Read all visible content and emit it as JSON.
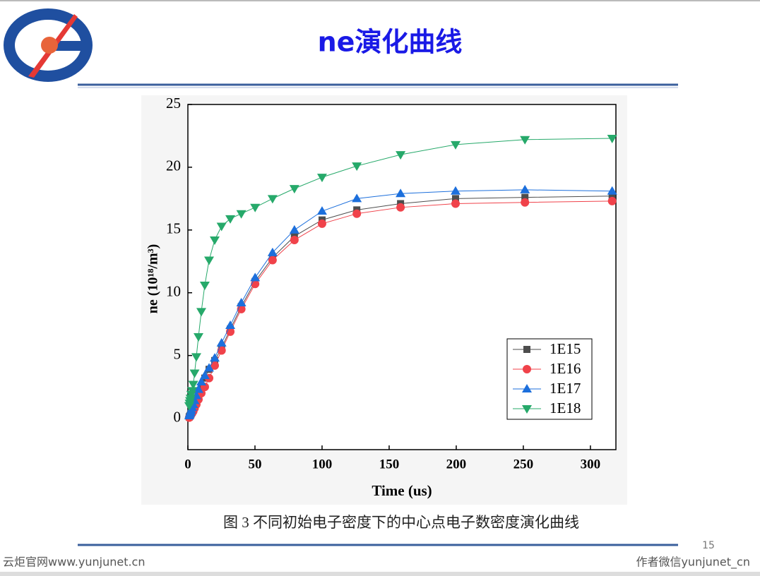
{
  "header": {
    "title": "ne演化曲线"
  },
  "chart_data": {
    "type": "line",
    "x_label": "Time  (us)",
    "y_label": "ne  (10¹⁸/m³)",
    "x": [
      1,
      1.3,
      1.6,
      2,
      2.5,
      3.2,
      4,
      5,
      6.3,
      7.9,
      10,
      12.6,
      15.8,
      20,
      25.1,
      31.6,
      39.8,
      50.1,
      63.1,
      79.4,
      100,
      125.9,
      158.5,
      199.5,
      251.2,
      316.2
    ],
    "series": [
      {
        "name": "1E15",
        "color": "#4d4d4d",
        "marker": "square",
        "values": [
          0.1,
          0.15,
          0.2,
          0.3,
          0.4,
          0.55,
          0.75,
          1.0,
          1.4,
          1.9,
          2.5,
          3.2,
          3.9,
          4.6,
          5.6,
          7.1,
          8.9,
          10.9,
          12.8,
          14.5,
          15.8,
          16.6,
          17.1,
          17.5,
          17.6,
          17.7
        ]
      },
      {
        "name": "1E16",
        "color": "#f0424a",
        "marker": "circle",
        "values": [
          0.05,
          0.1,
          0.15,
          0.2,
          0.3,
          0.4,
          0.55,
          0.8,
          1.1,
          1.5,
          2.0,
          2.5,
          3.2,
          4.2,
          5.4,
          6.9,
          8.7,
          10.7,
          12.6,
          14.2,
          15.5,
          16.3,
          16.8,
          17.1,
          17.2,
          17.3
        ]
      },
      {
        "name": "1E17",
        "color": "#1c6fdc",
        "marker": "triangle-up",
        "values": [
          0.2,
          0.3,
          0.4,
          0.5,
          0.65,
          0.85,
          1.1,
          1.4,
          1.8,
          2.3,
          2.9,
          3.4,
          4.0,
          4.8,
          6.0,
          7.4,
          9.2,
          11.2,
          13.2,
          15.0,
          16.5,
          17.5,
          17.9,
          18.1,
          18.2,
          18.1
        ]
      },
      {
        "name": "1E18",
        "color": "#26a96a",
        "marker": "triangle-down",
        "values": [
          1.0,
          1.2,
          1.4,
          1.6,
          1.9,
          2.2,
          2.7,
          3.6,
          4.9,
          6.5,
          8.5,
          10.6,
          12.6,
          14.2,
          15.3,
          15.9,
          16.3,
          16.8,
          17.5,
          18.3,
          19.2,
          20.1,
          21.0,
          21.8,
          22.2,
          22.3
        ]
      }
    ],
    "xlim": [
      0,
      319
    ],
    "xticks": [
      0,
      50,
      100,
      150,
      200,
      250,
      300
    ],
    "ylim": [
      -2.5,
      25
    ],
    "yticks": [
      0,
      5,
      10,
      15,
      20,
      25
    ],
    "legend": "lower-right"
  },
  "caption": "图 3  不同初始电子密度下的中心点电子数密度演化曲线",
  "page_number": "15",
  "footer": {
    "left": "云炬官网www.yunjunet.cn",
    "right": "作者微信yunjunet_cn"
  }
}
